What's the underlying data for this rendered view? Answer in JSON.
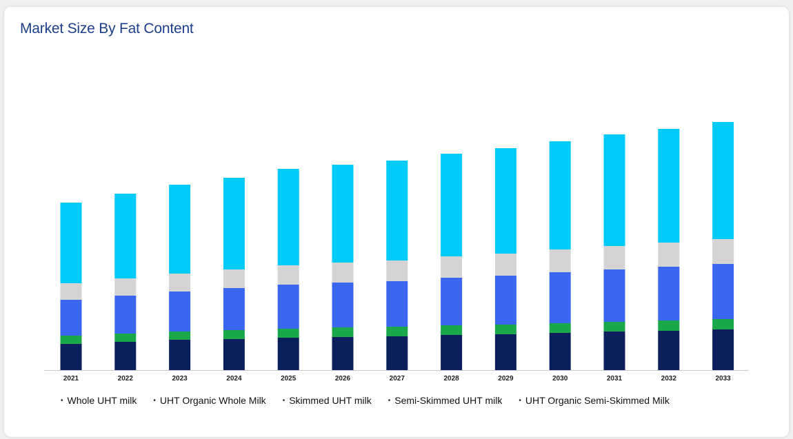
{
  "page": {
    "title": "Market Size By Fat Content"
  },
  "chart_data": {
    "type": "bar",
    "stacked": true,
    "categories": [
      "2021",
      "2022",
      "2023",
      "2024",
      "2025",
      "2026",
      "2027",
      "2028",
      "2029",
      "2030",
      "2031",
      "2032",
      "2033"
    ],
    "series": [
      {
        "name": "Whole UHT milk",
        "color": "#0a1f5c",
        "values": [
          38,
          41,
          44,
          45,
          47,
          48,
          49,
          51,
          52,
          54,
          56,
          57,
          59
        ]
      },
      {
        "name": "UHT Organic Whole Milk",
        "color": "#1aa84a",
        "values": [
          12,
          12,
          12,
          13,
          13,
          14,
          14,
          14,
          14,
          14,
          14,
          15,
          15
        ]
      },
      {
        "name": "Skimmed UHT milk",
        "color": "#3b67f0",
        "values": [
          52,
          55,
          58,
          61,
          64,
          65,
          66,
          69,
          71,
          74,
          76,
          78,
          80
        ]
      },
      {
        "name": "Semi-Skimmed UHT milk",
        "color": "#d4d4d4",
        "values": [
          24,
          25,
          26,
          27,
          28,
          29,
          30,
          31,
          32,
          33,
          34,
          35,
          36
        ]
      },
      {
        "name": "UHT Organic Semi-Skimmed Milk",
        "color": "#00cbfb",
        "values": [
          117,
          123,
          129,
          133,
          140,
          142,
          145,
          149,
          153,
          157,
          162,
          165,
          170
        ]
      }
    ],
    "ylim": [
      0,
      380
    ],
    "grid": false,
    "legend_position": "bottom"
  }
}
